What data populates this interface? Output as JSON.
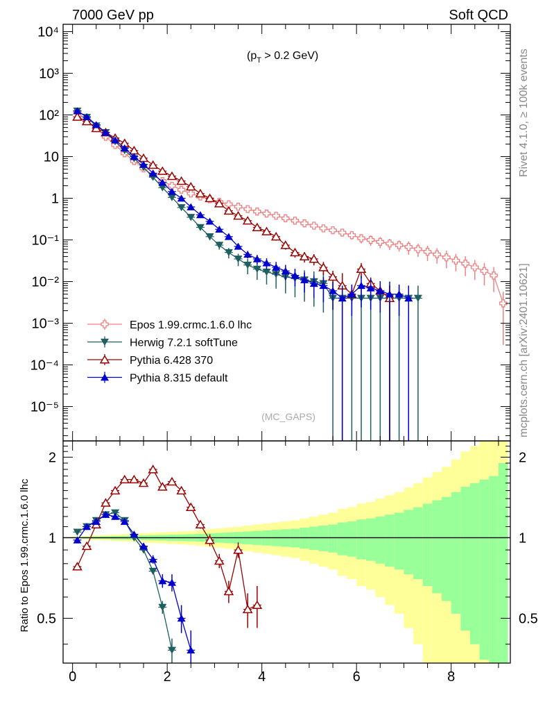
{
  "header": {
    "left": "7000 GeV pp",
    "right": "Soft QCD"
  },
  "annotation": {
    "cut": "(p",
    "cut_sub": "T",
    "cut_rest": " > 0.2 GeV)",
    "analysis": "(MC_GAPS)"
  },
  "side": {
    "rivet": "Rivet 4.1.0, ≥ 100k events",
    "mcplots": "mcplots.cern.ch [arXiv:2401.10621]"
  },
  "colors": {
    "epos": "#f08080",
    "herwig": "#1e5f5f",
    "py6": "#990000",
    "py8": "#0000cc",
    "band_yellow": "#ffff99",
    "band_green": "#99ff99"
  },
  "chart_data": [
    {
      "type": "line",
      "panel": "main",
      "yscale": "log",
      "xlim": [
        -0.2,
        9.25
      ],
      "ylim": [
        1.5e-06,
        15000
      ],
      "ytick_labels": [
        "10⁻⁵",
        "10⁻⁴",
        "10⁻³",
        "10⁻²",
        "10⁻¹",
        "1",
        "10",
        "10²",
        "10³",
        "10⁴"
      ],
      "legend": {
        "position": "lower-left",
        "entries": [
          "Epos 1.99.crmc.1.6.0 lhc",
          "Herwig 7.2.1 softTune",
          "Pythia 6.428 370",
          "Pythia 8.315 default"
        ]
      },
      "series": [
        {
          "name": "Epos 1.99.crmc.1.6.0 lhc",
          "marker": "cross",
          "color": "#f08080",
          "x": [
            0.1,
            0.3,
            0.5,
            0.7,
            0.9,
            1.1,
            1.3,
            1.5,
            1.7,
            1.9,
            2.1,
            2.3,
            2.5,
            2.7,
            2.9,
            3.1,
            3.3,
            3.5,
            3.7,
            3.9,
            4.1,
            4.3,
            4.5,
            4.7,
            4.9,
            5.1,
            5.3,
            5.5,
            5.7,
            5.9,
            6.1,
            6.3,
            6.5,
            6.7,
            6.9,
            7.1,
            7.3,
            7.5,
            7.7,
            7.9,
            8.1,
            8.3,
            8.5,
            8.7,
            8.9,
            9.1
          ],
          "y": [
            115,
            75,
            48,
            30,
            19,
            12,
            7.8,
            5.2,
            3.6,
            2.6,
            2.0,
            1.6,
            1.3,
            1.1,
            0.95,
            0.82,
            0.72,
            0.63,
            0.55,
            0.48,
            0.43,
            0.38,
            0.33,
            0.29,
            0.25,
            0.22,
            0.19,
            0.17,
            0.15,
            0.13,
            0.11,
            0.1,
            0.09,
            0.082,
            0.075,
            0.068,
            0.06,
            0.052,
            0.045,
            0.038,
            0.032,
            0.027,
            0.022,
            0.018,
            0.014,
            0.003
          ],
          "y_err_rel": [
            0.01,
            0.01,
            0.01,
            0.01,
            0.01,
            0.01,
            0.01,
            0.01,
            0.01,
            0.02,
            0.02,
            0.02,
            0.02,
            0.03,
            0.03,
            0.04,
            0.04,
            0.05,
            0.05,
            0.06,
            0.06,
            0.07,
            0.08,
            0.09,
            0.1,
            0.12,
            0.14,
            0.17,
            0.2,
            0.22,
            0.25,
            0.28,
            0.3,
            0.3,
            0.3,
            0.35,
            0.35,
            0.4,
            0.4,
            0.45,
            0.45,
            0.5,
            0.5,
            0.55,
            0.6,
            0.9
          ]
        },
        {
          "name": "Herwig 7.2.1 softTune",
          "marker": "triangle-down",
          "color": "#1e5f5f",
          "x": [
            0.1,
            0.3,
            0.5,
            0.7,
            0.9,
            1.1,
            1.3,
            1.5,
            1.7,
            1.9,
            2.1,
            2.3,
            2.5,
            2.7,
            2.9,
            3.1,
            3.3,
            3.5,
            3.7,
            3.9,
            4.1,
            4.3,
            4.5,
            4.7,
            4.9,
            5.1,
            5.3,
            5.5,
            5.7,
            5.9,
            6.1,
            6.3,
            6.5,
            6.7,
            6.9,
            7.1,
            7.3
          ],
          "y": [
            125,
            88,
            55,
            38,
            23,
            14,
            9,
            5.5,
            3.2,
            1.8,
            1.05,
            0.6,
            0.35,
            0.2,
            0.12,
            0.075,
            0.05,
            0.035,
            0.025,
            0.02,
            0.017,
            0.015,
            0.013,
            0.012,
            0.011,
            0.01,
            0.009,
            0.004,
            0.004,
            0.004,
            0.004,
            0.004,
            0.004,
            0.004,
            0.004,
            0.004,
            0.004
          ],
          "y_err_rel": [
            0.02,
            0.02,
            0.02,
            0.02,
            0.02,
            0.03,
            0.03,
            0.04,
            0.05,
            0.06,
            0.08,
            0.1,
            0.12,
            0.15,
            0.18,
            0.22,
            0.28,
            0.33,
            0.4,
            0.45,
            0.5,
            0.55,
            0.6,
            0.65,
            0.7,
            0.75,
            0.8,
            1,
            1,
            1,
            1,
            1,
            1,
            1,
            1,
            1,
            1
          ]
        },
        {
          "name": "Pythia 6.428 370",
          "marker": "triangle-up-open",
          "color": "#990000",
          "x": [
            0.1,
            0.3,
            0.5,
            0.7,
            0.9,
            1.1,
            1.3,
            1.5,
            1.7,
            1.9,
            2.1,
            2.3,
            2.5,
            2.7,
            2.9,
            3.1,
            3.3,
            3.5,
            3.7,
            3.9,
            4.1,
            4.3,
            4.5,
            4.7,
            4.9,
            5.1,
            5.3,
            5.5,
            5.7,
            5.9,
            6.1,
            6.3,
            6.5,
            6.7
          ],
          "y": [
            90,
            70,
            48,
            38,
            28,
            21,
            14,
            9.2,
            6.3,
            4.5,
            3.4,
            2.6,
            1.9,
            1.3,
            1.0,
            0.75,
            0.5,
            0.38,
            0.29,
            0.2,
            0.16,
            0.12,
            0.075,
            0.05,
            0.04,
            0.035,
            0.022,
            0.013,
            0.008,
            0.005,
            0.02,
            0.009,
            0.006,
            0.004
          ],
          "y_err_rel": [
            0.02,
            0.02,
            0.02,
            0.02,
            0.02,
            0.03,
            0.03,
            0.03,
            0.04,
            0.04,
            0.05,
            0.05,
            0.06,
            0.07,
            0.08,
            0.09,
            0.1,
            0.12,
            0.14,
            0.16,
            0.18,
            0.2,
            0.22,
            0.25,
            0.28,
            0.3,
            0.35,
            0.4,
            1,
            0.4,
            0.4,
            0.4,
            0.4,
            1
          ]
        },
        {
          "name": "Pythia 8.315 default",
          "marker": "triangle-up",
          "color": "#0000cc",
          "x": [
            0.1,
            0.3,
            0.5,
            0.7,
            0.9,
            1.1,
            1.3,
            1.5,
            1.7,
            1.9,
            2.1,
            2.3,
            2.5,
            2.7,
            2.9,
            3.1,
            3.3,
            3.5,
            3.7,
            3.9,
            4.1,
            4.3,
            4.5,
            4.7,
            4.9,
            5.1,
            5.3,
            5.5,
            5.7,
            5.9,
            6.1,
            6.3,
            6.5,
            6.7,
            6.9,
            7.1
          ],
          "y": [
            125,
            90,
            58,
            38,
            25,
            16,
            10,
            6.5,
            4.0,
            2.4,
            1.45,
            1.0,
            0.62,
            0.4,
            0.28,
            0.18,
            0.12,
            0.07,
            0.045,
            0.035,
            0.028,
            0.022,
            0.018,
            0.014,
            0.011,
            0.009,
            0.008,
            0.006,
            0.004,
            0.005,
            0.008,
            0.007,
            0.006,
            0.005,
            0.005,
            0.004
          ],
          "y_err_rel": [
            0.02,
            0.02,
            0.02,
            0.02,
            0.02,
            0.03,
            0.03,
            0.03,
            0.04,
            0.04,
            0.05,
            0.06,
            0.07,
            0.08,
            0.1,
            0.12,
            0.14,
            0.16,
            0.2,
            0.25,
            0.3,
            0.35,
            0.4,
            0.45,
            0.5,
            0.55,
            0.6,
            0.65,
            1,
            0.7,
            0.7,
            0.7,
            0.7,
            1,
            0.7,
            1
          ]
        }
      ]
    },
    {
      "type": "line",
      "panel": "ratio",
      "xlabel": "",
      "ylabel": "Ratio to Epos 1.99.crmc.1.6.0 lhc",
      "xlim": [
        -0.2,
        9.25
      ],
      "ylim": [
        0.34,
        2.3
      ],
      "yticks": [
        0.5,
        1,
        2
      ],
      "xticks": [
        0,
        2,
        4,
        6,
        8
      ],
      "reference": 1,
      "bands": {
        "x_edges": [
          0,
          0.2,
          0.4,
          0.6,
          0.8,
          1.0,
          1.2,
          1.4,
          1.6,
          1.8,
          2.0,
          2.2,
          2.4,
          2.6,
          2.8,
          3.0,
          3.2,
          3.4,
          3.6,
          3.8,
          4.0,
          4.2,
          4.4,
          4.6,
          4.8,
          5.0,
          5.2,
          5.4,
          5.6,
          5.8,
          6.0,
          6.2,
          6.4,
          6.6,
          6.8,
          7.0,
          7.2,
          7.4,
          7.6,
          7.8,
          8.0,
          8.2,
          8.4,
          8.6,
          8.8,
          9.0,
          9.2
        ],
        "green_half_width": [
          0.005,
          0.007,
          0.01,
          0.012,
          0.014,
          0.016,
          0.018,
          0.02,
          0.022,
          0.024,
          0.026,
          0.028,
          0.03,
          0.034,
          0.038,
          0.042,
          0.046,
          0.05,
          0.055,
          0.06,
          0.065,
          0.07,
          0.075,
          0.08,
          0.09,
          0.1,
          0.11,
          0.12,
          0.14,
          0.15,
          0.17,
          0.18,
          0.2,
          0.22,
          0.24,
          0.27,
          0.3,
          0.34,
          0.38,
          0.42,
          0.48,
          0.55,
          0.6,
          0.65,
          0.7,
          0.9
        ],
        "yellow_half_width": [
          0.01,
          0.014,
          0.02,
          0.024,
          0.028,
          0.032,
          0.036,
          0.04,
          0.044,
          0.048,
          0.052,
          0.056,
          0.06,
          0.068,
          0.076,
          0.084,
          0.092,
          0.1,
          0.11,
          0.12,
          0.13,
          0.14,
          0.15,
          0.16,
          0.18,
          0.2,
          0.22,
          0.24,
          0.28,
          0.3,
          0.34,
          0.36,
          0.4,
          0.44,
          0.48,
          0.54,
          0.6,
          0.68,
          0.76,
          0.84,
          0.96,
          1.1,
          1.2,
          1.3,
          1.4,
          1.8
        ]
      },
      "series": [
        {
          "name": "Herwig 7.2.1 softTune",
          "color": "#1e5f5f",
          "marker": "triangle-down",
          "x": [
            0.1,
            0.3,
            0.5,
            0.7,
            0.9,
            1.1,
            1.3,
            1.5,
            1.7,
            1.9,
            2.1
          ],
          "y": [
            1.05,
            1.1,
            1.16,
            1.22,
            1.24,
            1.16,
            1.0,
            0.9,
            0.75,
            0.55,
            0.38
          ],
          "err": [
            0.01,
            0.01,
            0.01,
            0.01,
            0.01,
            0.01,
            0.01,
            0.01,
            0.02,
            0.03,
            0.04
          ]
        },
        {
          "name": "Pythia 6.428 370",
          "color": "#990000",
          "marker": "triangle-up-open",
          "x": [
            0.1,
            0.3,
            0.5,
            0.7,
            0.9,
            1.1,
            1.3,
            1.5,
            1.7,
            1.9,
            2.1,
            2.3,
            2.5,
            2.7,
            2.9,
            3.1,
            3.3,
            3.5,
            3.7,
            3.9
          ],
          "y": [
            0.78,
            0.93,
            1.12,
            1.35,
            1.5,
            1.65,
            1.65,
            1.6,
            1.8,
            1.55,
            1.62,
            1.5,
            1.3,
            1.12,
            0.98,
            0.82,
            0.63,
            0.9,
            0.54,
            0.56
          ],
          "err": [
            0.01,
            0.01,
            0.01,
            0.01,
            0.01,
            0.02,
            0.02,
            0.02,
            0.03,
            0.03,
            0.03,
            0.04,
            0.04,
            0.04,
            0.05,
            0.05,
            0.06,
            0.06,
            0.08,
            0.1
          ]
        },
        {
          "name": "Pythia 8.315 default",
          "color": "#0000cc",
          "marker": "triangle-up",
          "x": [
            0.1,
            0.3,
            0.5,
            0.7,
            0.9,
            1.1,
            1.3,
            1.5,
            1.7,
            1.9,
            2.1,
            2.3,
            2.5
          ],
          "y": [
            0.98,
            1.1,
            1.15,
            1.22,
            1.2,
            1.15,
            1.03,
            0.93,
            0.83,
            0.69,
            0.68,
            0.5,
            0.38
          ],
          "err": [
            0.01,
            0.01,
            0.01,
            0.01,
            0.01,
            0.01,
            0.01,
            0.02,
            0.03,
            0.04,
            0.05,
            0.06,
            0.07
          ]
        }
      ]
    }
  ]
}
